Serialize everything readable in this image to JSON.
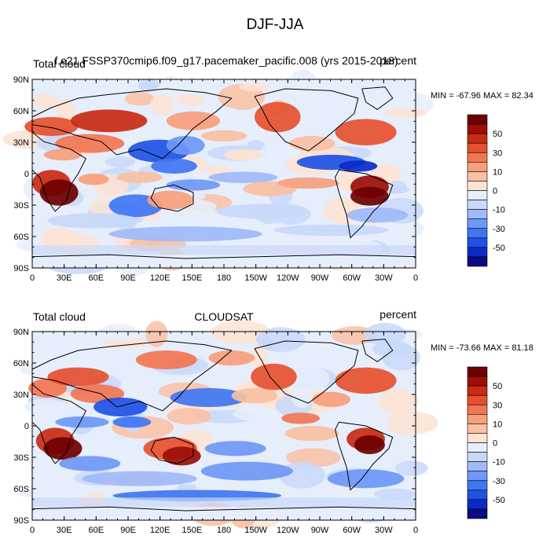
{
  "figure_title": "DJF-JJA",
  "colors": {
    "levels_colors": [
      "#0b0b82",
      "#0a2bc8",
      "#1f51e6",
      "#3f76f2",
      "#6f98f6",
      "#9fbaf8",
      "#c8d8fa",
      "#e6eefc",
      "#fde3d1",
      "#f9c0a3",
      "#f79f7c",
      "#f27654",
      "#e6502f",
      "#c92a13",
      "#9c0e06",
      "#6e0000"
    ]
  },
  "panels": [
    {
      "left_title": "Total cloud",
      "center_title": "f.e21.FSSP370cmip6.f09_g17.pacemaker_pacific.008 (yrs 2015-2018)",
      "right_title": "percent",
      "minmax": "MIN = -67.96 MAX =  82.34"
    },
    {
      "left_title": "Total cloud",
      "center_title": "CLOUDSAT",
      "right_title": "percent",
      "minmax": "MIN = -73.66 MAX =  81.18"
    }
  ],
  "axes": {
    "lon_ticks": [
      "0",
      "30E",
      "60E",
      "90E",
      "120E",
      "150E",
      "180",
      "150W",
      "120W",
      "90W",
      "60W",
      "30W",
      "0"
    ],
    "lat_ticks": [
      "90N",
      "60N",
      "30N",
      "0",
      "30S",
      "60S",
      "90S"
    ]
  },
  "colorbar": {
    "labels": [
      "50",
      "30",
      "10",
      "0",
      "-10",
      "-30",
      "-50"
    ]
  }
}
